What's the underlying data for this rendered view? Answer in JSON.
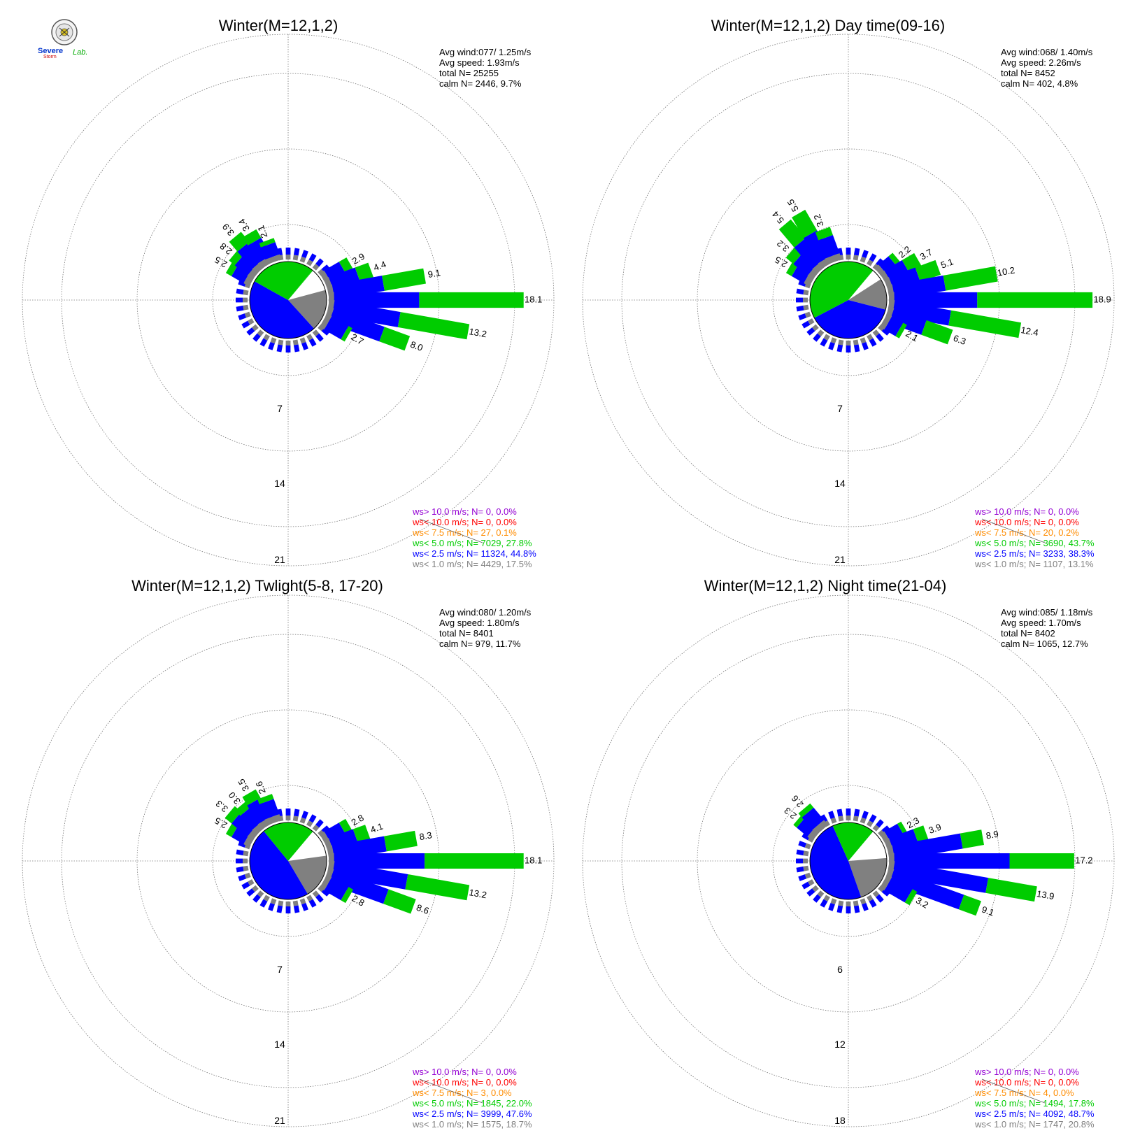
{
  "logo": {
    "text_top": "Severe",
    "text_bottom": "Storm",
    "text_lab": "Lab."
  },
  "colors": {
    "calm": "#808080",
    "lt1": "#808080",
    "lt2_5": "#0000ff",
    "lt5": "#00cc00",
    "lt7_5": "#ff8c00",
    "lt10": "#ff0000",
    "gt10": "#9400d3",
    "grid": "#777777"
  },
  "chart_data": [
    {
      "type": "wind-rose",
      "title": "Winter(M=12,1,2)",
      "info": [
        "Avg wind:077/ 1.25m/s",
        "Avg speed: 1.93m/s",
        "total N=       25255",
        "calm N=   2446,   9.7%"
      ],
      "ring_labels": [
        "7",
        "14",
        "21"
      ],
      "legend": [
        {
          "text": "ws> 10.0 m/s; N=     0,  0.0%",
          "color": "#9400d3"
        },
        {
          "text": "ws< 10.0 m/s; N=     0,  0.0%",
          "color": "#ff0000"
        },
        {
          "text": "ws<  7.5 m/s; N=    27,  0.1%",
          "color": "#ff8c00"
        },
        {
          "text": "ws<  5.0 m/s; N=  7029, 27.8%",
          "color": "#00cc00"
        },
        {
          "text": "ws<  2.5 m/s; N= 11324, 44.8%",
          "color": "#0000ff"
        },
        {
          "text": "ws<  1.0 m/s; N=  4429, 17.5%",
          "color": "#808080"
        }
      ],
      "pie_fractions": {
        "calm": 0.097,
        "lt1": 0.175,
        "lt2_5": 0.448,
        "lt5": 0.278
      },
      "petals": [
        {
          "dir": 300,
          "lt1": 0.6,
          "lt2_5": 1.3,
          "lt5": 0.6,
          "total": 2.5,
          "label": "2.5"
        },
        {
          "dir": 310,
          "lt1": 0.6,
          "lt2_5": 1.5,
          "lt5": 0.7,
          "total": 2.8,
          "label": "2.8"
        },
        {
          "dir": 320,
          "lt1": 0.6,
          "lt2_5": 2.1,
          "lt5": 1.2,
          "total": 3.9,
          "label": "3.9"
        },
        {
          "dir": 330,
          "lt1": 0.6,
          "lt2_5": 1.9,
          "lt5": 0.9,
          "total": 3.4,
          "label": "3.4"
        },
        {
          "dir": 340,
          "lt1": 0.5,
          "lt2_5": 1.2,
          "lt5": 0.4,
          "total": 2.1,
          "label": "2.1"
        },
        {
          "dir": 60,
          "lt1": 0.5,
          "lt2_5": 1.6,
          "lt5": 0.8,
          "total": 2.9,
          "label": "2.9"
        },
        {
          "dir": 70,
          "lt1": 0.5,
          "lt2_5": 2.6,
          "lt5": 1.3,
          "total": 4.4,
          "label": "4.4"
        },
        {
          "dir": 80,
          "lt1": 0.5,
          "lt2_5": 4.7,
          "lt5": 3.9,
          "total": 9.1,
          "label": "9.1"
        },
        {
          "dir": 90,
          "lt1": 0.5,
          "lt2_5": 7.9,
          "lt5": 9.7,
          "total": 18.1,
          "label": "18.1"
        },
        {
          "dir": 100,
          "lt1": 0.5,
          "lt2_5": 6.2,
          "lt5": 6.5,
          "total": 13.2,
          "label": "13.2"
        },
        {
          "dir": 110,
          "lt1": 0.5,
          "lt2_5": 5.0,
          "lt5": 2.5,
          "total": 8.0,
          "label": "8.0"
        },
        {
          "dir": 120,
          "lt1": 0.5,
          "lt2_5": 1.8,
          "lt5": 0.4,
          "total": 2.7,
          "label": "2.7"
        }
      ]
    },
    {
      "type": "wind-rose",
      "title": "Winter(M=12,1,2) Day time(09-16)",
      "info": [
        "Avg wind:068/ 1.40m/s",
        "Avg speed: 2.26m/s",
        "total N=        8452",
        "calm N=    402,   4.8%"
      ],
      "ring_labels": [
        "7",
        "14",
        "21"
      ],
      "legend": [
        {
          "text": "ws> 10.0 m/s; N=     0,  0.0%",
          "color": "#9400d3"
        },
        {
          "text": "ws< 10.0 m/s; N=     0,  0.0%",
          "color": "#ff0000"
        },
        {
          "text": "ws<  7.5 m/s; N=    20,  0.2%",
          "color": "#ff8c00"
        },
        {
          "text": "ws<  5.0 m/s; N=  3690, 43.7%",
          "color": "#00cc00"
        },
        {
          "text": "ws<  2.5 m/s; N=  3233, 38.3%",
          "color": "#0000ff"
        },
        {
          "text": "ws<  1.0 m/s; N=  1107, 13.1%",
          "color": "#808080"
        }
      ],
      "pie_fractions": {
        "calm": 0.048,
        "lt1": 0.131,
        "lt2_5": 0.383,
        "lt5": 0.437
      },
      "petals": [
        {
          "dir": 300,
          "lt1": 0.6,
          "lt2_5": 1.3,
          "lt5": 0.6,
          "total": 2.5,
          "label": "2.5"
        },
        {
          "dir": 310,
          "lt1": 0.6,
          "lt2_5": 1.7,
          "lt5": 0.9,
          "total": 3.2,
          "label": "3.2"
        },
        {
          "dir": 320,
          "lt1": 0.6,
          "lt2_5": 2.6,
          "lt5": 2.2,
          "total": 5.4,
          "label": "5.4"
        },
        {
          "dir": 330,
          "lt1": 0.6,
          "lt2_5": 2.7,
          "lt5": 2.2,
          "total": 5.5,
          "label": "5.5"
        },
        {
          "dir": 340,
          "lt1": 0.6,
          "lt2_5": 1.8,
          "lt5": 0.8,
          "total": 3.2,
          "label": "3.2"
        },
        {
          "dir": 50,
          "lt1": 0.5,
          "lt2_5": 1.2,
          "lt5": 0.5,
          "total": 2.2,
          "label": "2.2"
        },
        {
          "dir": 60,
          "lt1": 0.5,
          "lt2_5": 1.9,
          "lt5": 1.3,
          "total": 3.7,
          "label": "3.7"
        },
        {
          "dir": 70,
          "lt1": 0.5,
          "lt2_5": 2.6,
          "lt5": 2.0,
          "total": 5.1,
          "label": "5.1"
        },
        {
          "dir": 80,
          "lt1": 0.5,
          "lt2_5": 4.8,
          "lt5": 4.9,
          "total": 10.2,
          "label": "10.2"
        },
        {
          "dir": 90,
          "lt1": 0.5,
          "lt2_5": 7.7,
          "lt5": 10.7,
          "total": 18.9,
          "label": "18.9"
        },
        {
          "dir": 100,
          "lt1": 0.5,
          "lt2_5": 5.3,
          "lt5": 6.6,
          "total": 12.4,
          "label": "12.4"
        },
        {
          "dir": 110,
          "lt1": 0.5,
          "lt2_5": 3.2,
          "lt5": 2.6,
          "total": 6.3,
          "label": "6.3"
        },
        {
          "dir": 120,
          "lt1": 0.5,
          "lt2_5": 1.2,
          "lt5": 0.4,
          "total": 2.1,
          "label": "2.1"
        }
      ]
    },
    {
      "type": "wind-rose",
      "title": "Winter(M=12,1,2) Twlight(5-8, 17-20)",
      "info": [
        "Avg wind:080/ 1.20m/s",
        "Avg speed: 1.80m/s",
        "total N=        8401",
        "calm N=    979,  11.7%"
      ],
      "ring_labels": [
        "7",
        "14",
        "21"
      ],
      "legend": [
        {
          "text": "ws> 10.0 m/s; N=     0,  0.0%",
          "color": "#9400d3"
        },
        {
          "text": "ws< 10.0 m/s; N=     0,  0.0%",
          "color": "#ff0000"
        },
        {
          "text": "ws<  7.5 m/s; N=     3,  0.0%",
          "color": "#ff8c00"
        },
        {
          "text": "ws<  5.0 m/s; N=  1845, 22.0%",
          "color": "#00cc00"
        },
        {
          "text": "ws<  2.5 m/s; N=  3999, 47.6%",
          "color": "#0000ff"
        },
        {
          "text": "ws<  1.0 m/s; N=  1575, 18.7%",
          "color": "#808080"
        }
      ],
      "pie_fractions": {
        "calm": 0.117,
        "lt1": 0.187,
        "lt2_5": 0.476,
        "lt5": 0.22
      },
      "petals": [
        {
          "dir": 300,
          "lt1": 0.6,
          "lt2_5": 1.3,
          "lt5": 0.6,
          "total": 2.5,
          "label": "2.5"
        },
        {
          "dir": 310,
          "lt1": 0.6,
          "lt2_5": 1.9,
          "lt5": 0.8,
          "total": 3.3,
          "label": "3.3"
        },
        {
          "dir": 320,
          "lt1": 0.6,
          "lt2_5": 1.7,
          "lt5": 0.7,
          "total": 3.0,
          "label": "3.0"
        },
        {
          "dir": 330,
          "lt1": 0.6,
          "lt2_5": 2.0,
          "lt5": 0.9,
          "total": 3.5,
          "label": "3.5"
        },
        {
          "dir": 340,
          "lt1": 0.6,
          "lt2_5": 1.5,
          "lt5": 0.5,
          "total": 2.6,
          "label": "2.6"
        },
        {
          "dir": 60,
          "lt1": 0.5,
          "lt2_5": 1.6,
          "lt5": 0.7,
          "total": 2.8,
          "label": "2.8"
        },
        {
          "dir": 70,
          "lt1": 0.5,
          "lt2_5": 2.4,
          "lt5": 1.2,
          "total": 4.1,
          "label": "4.1"
        },
        {
          "dir": 80,
          "lt1": 0.5,
          "lt2_5": 4.9,
          "lt5": 2.9,
          "total": 8.3,
          "label": "8.3"
        },
        {
          "dir": 90,
          "lt1": 0.5,
          "lt2_5": 8.4,
          "lt5": 9.2,
          "total": 18.1,
          "label": "18.1"
        },
        {
          "dir": 100,
          "lt1": 0.5,
          "lt2_5": 6.9,
          "lt5": 5.8,
          "total": 13.2,
          "label": "13.2"
        },
        {
          "dir": 110,
          "lt1": 0.5,
          "lt2_5": 5.4,
          "lt5": 2.7,
          "total": 8.6,
          "label": "8.6"
        },
        {
          "dir": 120,
          "lt1": 0.5,
          "lt2_5": 1.8,
          "lt5": 0.5,
          "total": 2.8,
          "label": "2.8"
        }
      ]
    },
    {
      "type": "wind-rose",
      "title": "Winter(M=12,1,2) Night time(21-04)",
      "info": [
        "Avg wind:085/ 1.18m/s",
        "Avg speed: 1.70m/s",
        "total N=        8402",
        "calm N=   1065,  12.7%"
      ],
      "ring_labels": [
        "6",
        "12",
        "18"
      ],
      "legend": [
        {
          "text": "ws> 10.0 m/s; N=     0,  0.0%",
          "color": "#9400d3"
        },
        {
          "text": "ws< 10.0 m/s; N=     0,  0.0%",
          "color": "#ff0000"
        },
        {
          "text": "ws<  7.5 m/s; N=     4,  0.0%",
          "color": "#ff8c00"
        },
        {
          "text": "ws<  5.0 m/s; N=  1494, 17.8%",
          "color": "#00cc00"
        },
        {
          "text": "ws<  2.5 m/s; N=  4092, 48.7%",
          "color": "#0000ff"
        },
        {
          "text": "ws<  1.0 m/s; N=  1747, 20.8%",
          "color": "#808080"
        }
      ],
      "pie_fractions": {
        "calm": 0.127,
        "lt1": 0.208,
        "lt2_5": 0.487,
        "lt5": 0.178
      },
      "petals": [
        {
          "dir": 310,
          "lt1": 0.6,
          "lt2_5": 1.3,
          "lt5": 0.4,
          "total": 2.3,
          "label": "2.3"
        },
        {
          "dir": 320,
          "lt1": 0.6,
          "lt2_5": 1.5,
          "lt5": 0.5,
          "total": 2.6,
          "label": "2.6"
        },
        {
          "dir": 60,
          "lt1": 0.5,
          "lt2_5": 1.4,
          "lt5": 0.4,
          "total": 2.3,
          "label": "2.3"
        },
        {
          "dir": 70,
          "lt1": 0.5,
          "lt2_5": 2.4,
          "lt5": 1.0,
          "total": 3.9,
          "label": "3.9"
        },
        {
          "dir": 80,
          "lt1": 0.5,
          "lt2_5": 6.4,
          "lt5": 2.0,
          "total": 8.9,
          "label": "8.9"
        },
        {
          "dir": 90,
          "lt1": 0.5,
          "lt2_5": 10.7,
          "lt5": 6.0,
          "total": 17.2,
          "label": "17.2"
        },
        {
          "dir": 100,
          "lt1": 0.5,
          "lt2_5": 8.8,
          "lt5": 4.6,
          "total": 13.9,
          "label": "13.9"
        },
        {
          "dir": 110,
          "lt1": 0.5,
          "lt2_5": 6.9,
          "lt5": 1.7,
          "total": 9.1,
          "label": "9.1"
        },
        {
          "dir": 120,
          "lt1": 0.5,
          "lt2_5": 2.2,
          "lt5": 0.5,
          "total": 3.2,
          "label": "3.2"
        }
      ]
    }
  ]
}
